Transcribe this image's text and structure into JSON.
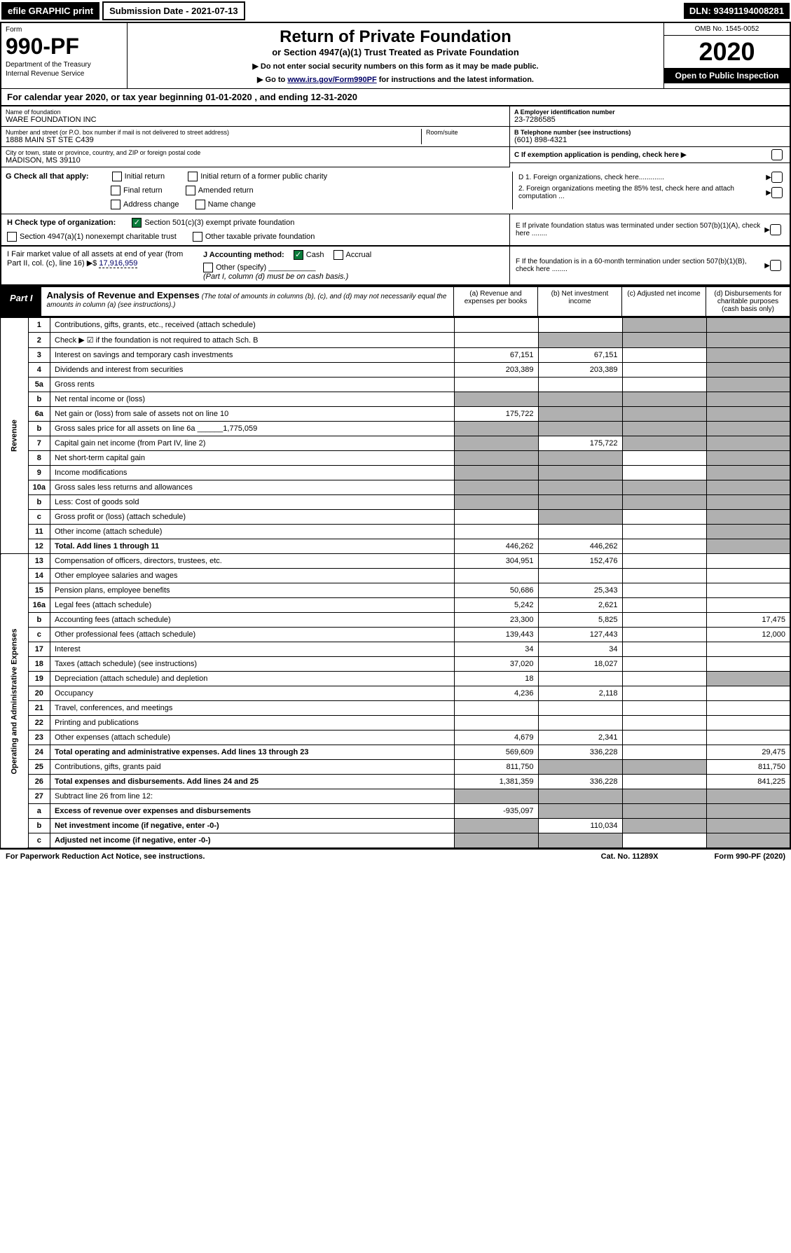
{
  "top": {
    "efile": "efile GRAPHIC print",
    "sub_date": "Submission Date - 2021-07-13",
    "dln": "DLN: 93491194008281"
  },
  "header": {
    "form_label": "Form",
    "form_num": "990-PF",
    "dept": "Department of the Treasury",
    "irs": "Internal Revenue Service",
    "title": "Return of Private Foundation",
    "subtitle": "or Section 4947(a)(1) Trust Treated as Private Foundation",
    "note1": "▶ Do not enter social security numbers on this form as it may be made public.",
    "note2_pre": "▶ Go to ",
    "note2_link": "www.irs.gov/Form990PF",
    "note2_post": " for instructions and the latest information.",
    "omb": "OMB No. 1545-0052",
    "year": "2020",
    "open": "Open to Public Inspection"
  },
  "cal": "For calendar year 2020, or tax year beginning 01-01-2020 , and ending 12-31-2020",
  "info": {
    "name_lbl": "Name of foundation",
    "name": "WARE FOUNDATION INC",
    "addr_lbl": "Number and street (or P.O. box number if mail is not delivered to street address)",
    "addr": "1888 MAIN ST STE C439",
    "room_lbl": "Room/suite",
    "city_lbl": "City or town, state or province, country, and ZIP or foreign postal code",
    "city": "MADISON, MS  39110",
    "ein_lbl": "A Employer identification number",
    "ein": "23-7286585",
    "tel_lbl": "B Telephone number (see instructions)",
    "tel": "(601) 898-4321",
    "c": "C If exemption application is pending, check here ▶",
    "d1": "D 1. Foreign organizations, check here.............",
    "d2": "2. Foreign organizations meeting the 85% test, check here and attach computation ...",
    "e": "E If private foundation status was terminated under section 507(b)(1)(A), check here ........",
    "f": "F If the foundation is in a 60-month termination under section 507(b)(1)(B), check here ........"
  },
  "g": {
    "lbl": "G Check all that apply:",
    "initial": "Initial return",
    "initial_former": "Initial return of a former public charity",
    "final": "Final return",
    "amended": "Amended return",
    "addr_change": "Address change",
    "name_change": "Name change"
  },
  "h": {
    "lbl": "H Check type of organization:",
    "501": "Section 501(c)(3) exempt private foundation",
    "4947": "Section 4947(a)(1) nonexempt charitable trust",
    "other": "Other taxable private foundation"
  },
  "i": {
    "lbl": "I Fair market value of all assets at end of year (from Part II, col. (c), line 16) ▶$",
    "val": "17,916,959"
  },
  "j": {
    "lbl": "J Accounting method:",
    "cash": "Cash",
    "accrual": "Accrual",
    "other": "Other (specify)",
    "note": "(Part I, column (d) must be on cash basis.)"
  },
  "part1": {
    "label": "Part I",
    "title": "Analysis of Revenue and Expenses",
    "sub": "(The total of amounts in columns (b), (c), and (d) may not necessarily equal the amounts in column (a) (see instructions).)",
    "col_a": "(a) Revenue and expenses per books",
    "col_b": "(b) Net investment income",
    "col_c": "(c) Adjusted net income",
    "col_d": "(d) Disbursements for charitable purposes (cash basis only)"
  },
  "side": {
    "rev": "Revenue",
    "exp": "Operating and Administrative Expenses"
  },
  "rows": [
    {
      "n": "1",
      "d": "Contributions, gifts, grants, etc., received (attach schedule)",
      "a": "",
      "b": "",
      "c": "g",
      "dd": "g"
    },
    {
      "n": "2",
      "d": "Check ▶ ☑ if the foundation is not required to attach Sch. B",
      "a": "",
      "b": "g",
      "c": "g",
      "dd": "g",
      "bold": [
        "not"
      ]
    },
    {
      "n": "3",
      "d": "Interest on savings and temporary cash investments",
      "a": "67,151",
      "b": "67,151",
      "c": "",
      "dd": "g"
    },
    {
      "n": "4",
      "d": "Dividends and interest from securities",
      "a": "203,389",
      "b": "203,389",
      "c": "",
      "dd": "g"
    },
    {
      "n": "5a",
      "d": "Gross rents",
      "a": "",
      "b": "",
      "c": "",
      "dd": "g"
    },
    {
      "n": "b",
      "d": "Net rental income or (loss)",
      "a": "g",
      "b": "g",
      "c": "g",
      "dd": "g"
    },
    {
      "n": "6a",
      "d": "Net gain or (loss) from sale of assets not on line 10",
      "a": "175,722",
      "b": "g",
      "c": "g",
      "dd": "g"
    },
    {
      "n": "b",
      "d": "Gross sales price for all assets on line 6a ______1,775,059",
      "a": "g",
      "b": "g",
      "c": "g",
      "dd": "g"
    },
    {
      "n": "7",
      "d": "Capital gain net income (from Part IV, line 2)",
      "a": "g",
      "b": "175,722",
      "c": "g",
      "dd": "g"
    },
    {
      "n": "8",
      "d": "Net short-term capital gain",
      "a": "g",
      "b": "g",
      "c": "",
      "dd": "g"
    },
    {
      "n": "9",
      "d": "Income modifications",
      "a": "g",
      "b": "g",
      "c": "",
      "dd": "g"
    },
    {
      "n": "10a",
      "d": "Gross sales less returns and allowances",
      "a": "g",
      "b": "g",
      "c": "g",
      "dd": "g"
    },
    {
      "n": "b",
      "d": "Less: Cost of goods sold",
      "a": "g",
      "b": "g",
      "c": "g",
      "dd": "g"
    },
    {
      "n": "c",
      "d": "Gross profit or (loss) (attach schedule)",
      "a": "",
      "b": "g",
      "c": "",
      "dd": "g"
    },
    {
      "n": "11",
      "d": "Other income (attach schedule)",
      "a": "",
      "b": "",
      "c": "",
      "dd": "g"
    },
    {
      "n": "12",
      "d": "Total. Add lines 1 through 11",
      "a": "446,262",
      "b": "446,262",
      "c": "",
      "dd": "g",
      "boldrow": true
    },
    {
      "n": "13",
      "d": "Compensation of officers, directors, trustees, etc.",
      "a": "304,951",
      "b": "152,476",
      "c": "",
      "dd": ""
    },
    {
      "n": "14",
      "d": "Other employee salaries and wages",
      "a": "",
      "b": "",
      "c": "",
      "dd": ""
    },
    {
      "n": "15",
      "d": "Pension plans, employee benefits",
      "a": "50,686",
      "b": "25,343",
      "c": "",
      "dd": ""
    },
    {
      "n": "16a",
      "d": "Legal fees (attach schedule)",
      "a": "5,242",
      "b": "2,621",
      "c": "",
      "dd": ""
    },
    {
      "n": "b",
      "d": "Accounting fees (attach schedule)",
      "a": "23,300",
      "b": "5,825",
      "c": "",
      "dd": "17,475"
    },
    {
      "n": "c",
      "d": "Other professional fees (attach schedule)",
      "a": "139,443",
      "b": "127,443",
      "c": "",
      "dd": "12,000"
    },
    {
      "n": "17",
      "d": "Interest",
      "a": "34",
      "b": "34",
      "c": "",
      "dd": ""
    },
    {
      "n": "18",
      "d": "Taxes (attach schedule) (see instructions)",
      "a": "37,020",
      "b": "18,027",
      "c": "",
      "dd": ""
    },
    {
      "n": "19",
      "d": "Depreciation (attach schedule) and depletion",
      "a": "18",
      "b": "",
      "c": "",
      "dd": "g"
    },
    {
      "n": "20",
      "d": "Occupancy",
      "a": "4,236",
      "b": "2,118",
      "c": "",
      "dd": ""
    },
    {
      "n": "21",
      "d": "Travel, conferences, and meetings",
      "a": "",
      "b": "",
      "c": "",
      "dd": ""
    },
    {
      "n": "22",
      "d": "Printing and publications",
      "a": "",
      "b": "",
      "c": "",
      "dd": ""
    },
    {
      "n": "23",
      "d": "Other expenses (attach schedule)",
      "a": "4,679",
      "b": "2,341",
      "c": "",
      "dd": ""
    },
    {
      "n": "24",
      "d": "Total operating and administrative expenses. Add lines 13 through 23",
      "a": "569,609",
      "b": "336,228",
      "c": "",
      "dd": "29,475",
      "boldrow": true
    },
    {
      "n": "25",
      "d": "Contributions, gifts, grants paid",
      "a": "811,750",
      "b": "g",
      "c": "g",
      "dd": "811,750"
    },
    {
      "n": "26",
      "d": "Total expenses and disbursements. Add lines 24 and 25",
      "a": "1,381,359",
      "b": "336,228",
      "c": "",
      "dd": "841,225",
      "boldrow": true
    },
    {
      "n": "27",
      "d": "Subtract line 26 from line 12:",
      "a": "g",
      "b": "g",
      "c": "g",
      "dd": "g"
    },
    {
      "n": "a",
      "d": "Excess of revenue over expenses and disbursements",
      "a": "-935,097",
      "b": "g",
      "c": "g",
      "dd": "g",
      "boldrow": true
    },
    {
      "n": "b",
      "d": "Net investment income (if negative, enter -0-)",
      "a": "g",
      "b": "110,034",
      "c": "g",
      "dd": "g",
      "boldrow": true
    },
    {
      "n": "c",
      "d": "Adjusted net income (if negative, enter -0-)",
      "a": "g",
      "b": "g",
      "c": "",
      "dd": "g",
      "boldrow": true
    }
  ],
  "footer": {
    "left": "For Paperwork Reduction Act Notice, see instructions.",
    "cat": "Cat. No. 11289X",
    "form": "Form 990-PF (2020)"
  }
}
